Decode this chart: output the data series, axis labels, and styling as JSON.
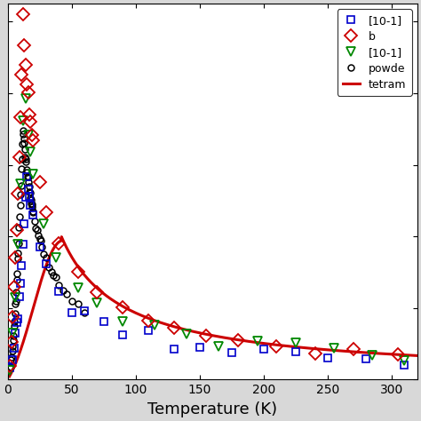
{
  "title": "",
  "xlabel": "Temperature (K)",
  "ylabel": "",
  "xlim": [
    0,
    320
  ],
  "ylim": [
    0,
    1.05
  ],
  "xticks": [
    0,
    50,
    100,
    150,
    200,
    250,
    300
  ],
  "legend_labels": [
    "[10-1]",
    "b",
    "[10-1]",
    "powde",
    "tetram"
  ],
  "legend_colors": [
    "#0000cc",
    "#cc0000",
    "#008800",
    "#000000",
    "#cc0000"
  ],
  "bg_color": "#d8d8d8",
  "plot_bg": "white",
  "xlabel_fontsize": 13,
  "legend_fontsize": 9,
  "marker_size_sq": 6,
  "marker_size_diam": 7,
  "marker_size_tri": 7,
  "marker_size_circ": 5
}
